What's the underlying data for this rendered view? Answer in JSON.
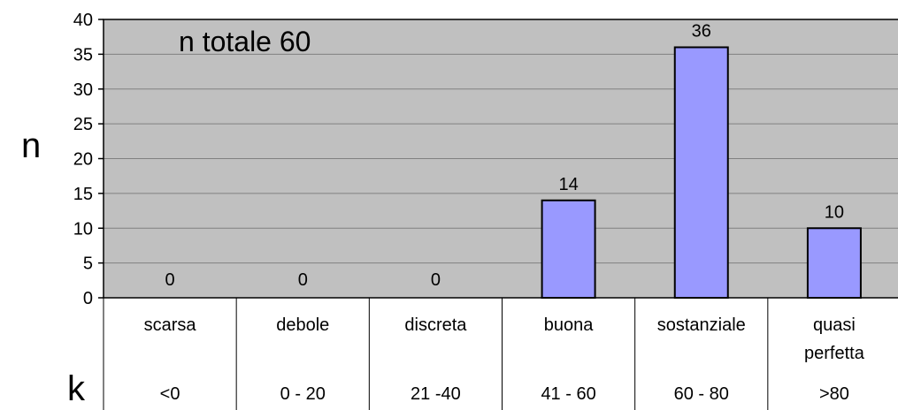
{
  "chart_data": {
    "type": "bar",
    "title": "",
    "annotation": "n totale 60",
    "ylabel": "n",
    "xlabel": "k",
    "ylim": [
      0,
      40
    ],
    "y_ticks": [
      0,
      5,
      10,
      15,
      20,
      25,
      30,
      35,
      40
    ],
    "grid": true,
    "categories": [
      "scarsa",
      "debole",
      "discreta",
      "buona",
      "sostanziale",
      "quasi perfetta"
    ],
    "category_label_lines": [
      [
        "scarsa"
      ],
      [
        "debole"
      ],
      [
        "discreta"
      ],
      [
        "buona"
      ],
      [
        "sostanziale"
      ],
      [
        "quasi",
        "perfetta"
      ]
    ],
    "ranges": [
      "<0",
      "0 - 20",
      "21 -40",
      "41 - 60",
      "60 - 80",
      ">80"
    ],
    "values": [
      0,
      0,
      0,
      14,
      36,
      10
    ],
    "data_labels": [
      "0",
      "0",
      "0",
      "14",
      "36",
      "10"
    ],
    "colors": {
      "plot_background": "#c0c0c0",
      "bar_fill": "#9999ff",
      "bar_stroke": "#000000",
      "grid": "#808080"
    }
  }
}
